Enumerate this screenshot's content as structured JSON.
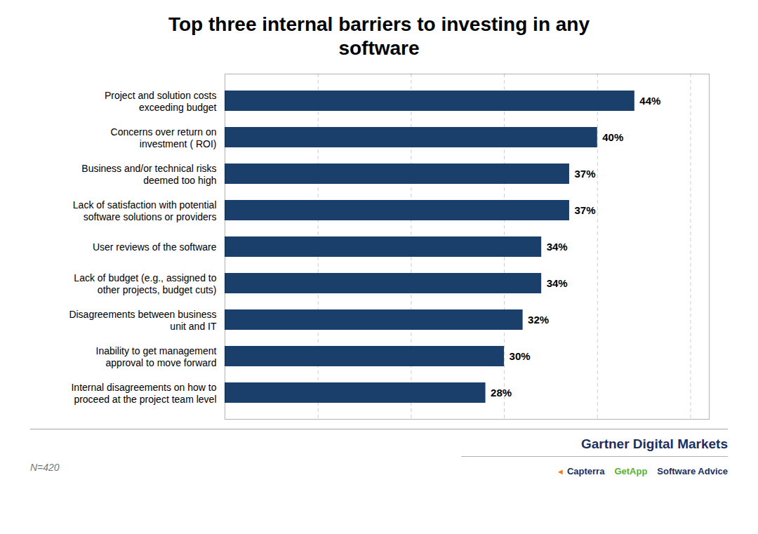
{
  "chart_data": {
    "type": "bar",
    "orientation": "horizontal",
    "title": "Top three internal barriers to investing in any\nsoftware",
    "categories": [
      "Project and solution costs\nexceeding budget",
      "Concerns over return on\ninvestment ( ROI)",
      "Business and/or technical risks\ndeemed too high",
      "Lack of satisfaction with potential\nsoftware solutions or providers",
      "User reviews of the software",
      "Lack of budget (e.g., assigned to\nother projects, budget cuts)",
      "Disagreements between business\nunit and IT",
      "Inability to get management\napproval to move forward",
      "Internal disagreements on how to\nproceed at the project team level"
    ],
    "values": [
      44,
      40,
      37,
      37,
      34,
      34,
      32,
      30,
      28
    ],
    "value_labels": [
      "44%",
      "40%",
      "37%",
      "37%",
      "34%",
      "34%",
      "32%",
      "30%",
      "28%"
    ],
    "data_labels": true,
    "color": "#1b3f6b",
    "xlim": [
      0,
      52
    ],
    "xticks": [
      10,
      20,
      30,
      40,
      50
    ],
    "grid": true,
    "tick_labels": "y",
    "annotations": [
      {
        "text": "N=420"
      },
      {
        "text": "Gartner Digital Markets",
        "color": "#1b3060"
      },
      {
        "text": "◄",
        "color": "#f47920"
      },
      {
        "text": "Capterra",
        "color": "#1b3060"
      },
      {
        "text": "GetApp",
        "color": "#5ab031"
      },
      {
        "text": "Software Advice",
        "color": "#1b3060"
      }
    ]
  }
}
